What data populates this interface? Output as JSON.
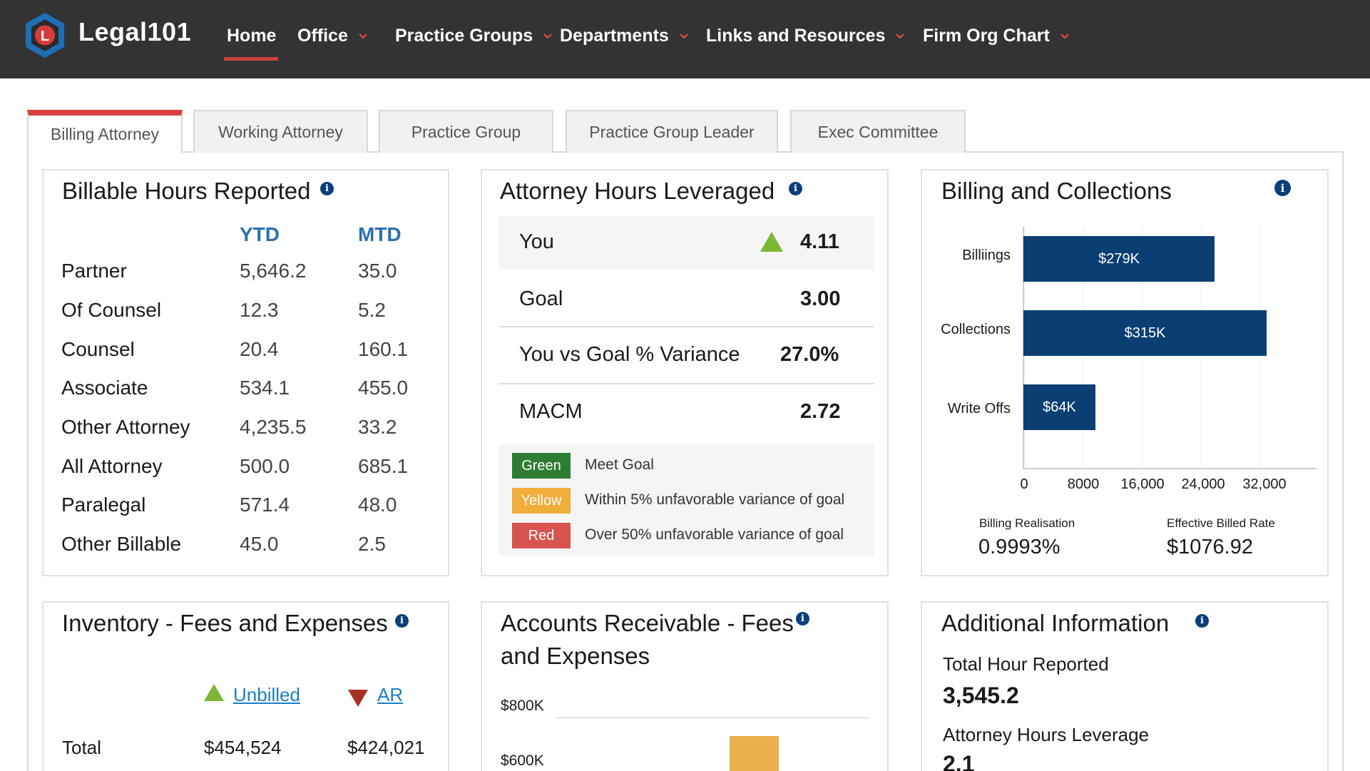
{
  "app": {
    "brand": "Legal101",
    "logo_letter": "L"
  },
  "nav": {
    "items": [
      {
        "label": "Home",
        "has_dropdown": false,
        "active": true
      },
      {
        "label": "Office",
        "has_dropdown": true
      },
      {
        "label": "Practice Groups",
        "has_dropdown": true
      },
      {
        "label": "Departments",
        "has_dropdown": true
      },
      {
        "label": "Links and Resources",
        "has_dropdown": true
      },
      {
        "label": "Firm Org Chart",
        "has_dropdown": true
      }
    ]
  },
  "tabs": [
    {
      "label": "Billing Attorney",
      "active": true
    },
    {
      "label": "Working Attorney"
    },
    {
      "label": "Practice Group"
    },
    {
      "label": "Practice Group Leader"
    },
    {
      "label": "Exec Committee"
    }
  ],
  "billable_hours": {
    "title": "Billable Hours Reported",
    "col_ytd": "YTD",
    "col_mtd": "MTD",
    "rows": [
      {
        "label": "Partner",
        "ytd": "5,646.2",
        "mtd": "35.0"
      },
      {
        "label": "Of Counsel",
        "ytd": "12.3",
        "mtd": "5.2"
      },
      {
        "label": "Counsel",
        "ytd": "20.4",
        "mtd": "160.1"
      },
      {
        "label": "Associate",
        "ytd": "534.1",
        "mtd": "455.0"
      },
      {
        "label": "Other Attorney",
        "ytd": "4,235.5",
        "mtd": "33.2"
      },
      {
        "label": "All Attorney",
        "ytd": "500.0",
        "mtd": "685.1"
      },
      {
        "label": "Paralegal",
        "ytd": "571.4",
        "mtd": "48.0"
      },
      {
        "label": "Other Billable",
        "ytd": "45.0",
        "mtd": "2.5"
      }
    ]
  },
  "leverage": {
    "title": "Attorney Hours Leveraged",
    "rows": [
      {
        "label": "You",
        "value": "4.11",
        "trend": "up"
      },
      {
        "label": "Goal",
        "value": "3.00"
      },
      {
        "label": "You vs Goal % Variance",
        "value": "27.0%"
      },
      {
        "label": "MACM",
        "value": "2.72"
      }
    ],
    "legend": [
      {
        "swatch": "Green",
        "color": "#2e7d32",
        "text": "Meet Goal"
      },
      {
        "swatch": "Yellow",
        "color": "#f0ad3a",
        "text": "Within 5% unfavorable variance of goal"
      },
      {
        "swatch": "Red",
        "color": "#d9534f",
        "text": "Over 50% unfavorable variance of goal"
      }
    ]
  },
  "billing": {
    "title": "Billing and Collections",
    "chart_data": {
      "type": "bar",
      "orientation": "horizontal",
      "categories": [
        "Billiings",
        "Collections",
        "Write Offs"
      ],
      "values": [
        279000,
        315000,
        64000
      ],
      "data_labels": [
        "$279K",
        "$315K",
        "$64K"
      ],
      "xlim": [
        0,
        32000
      ],
      "x_ticks": [
        "0",
        "8000",
        "16,000",
        "24,000",
        "32,000"
      ],
      "color": "#0b3f73"
    },
    "billing_realisation_label": "Billing  Realisation",
    "billing_realisation_value": "0.9993%",
    "effective_rate_label": "Effective Billed Rate",
    "effective_rate_value": "$1076.92"
  },
  "inventory": {
    "title": "Inventory - Fees and Expenses",
    "col_unbilled": "Unbilled",
    "col_ar": "AR",
    "total_label": "Total",
    "total_unbilled": "$454,524",
    "total_ar": "$424,021"
  },
  "ar": {
    "title_line1": "Accounts Receivable - Fees",
    "title_line2": "and Expenses",
    "chart_data": {
      "type": "bar",
      "y_ticks": [
        "$800K",
        "$600K"
      ],
      "bar_color": "#e8b04a"
    }
  },
  "additional": {
    "title": "Additional Information",
    "total_hours_label": "Total Hour Reported",
    "total_hours_value": "3,545.2",
    "leverage_label": "Attorney Hours Leverage",
    "leverage_value": "2.1"
  }
}
